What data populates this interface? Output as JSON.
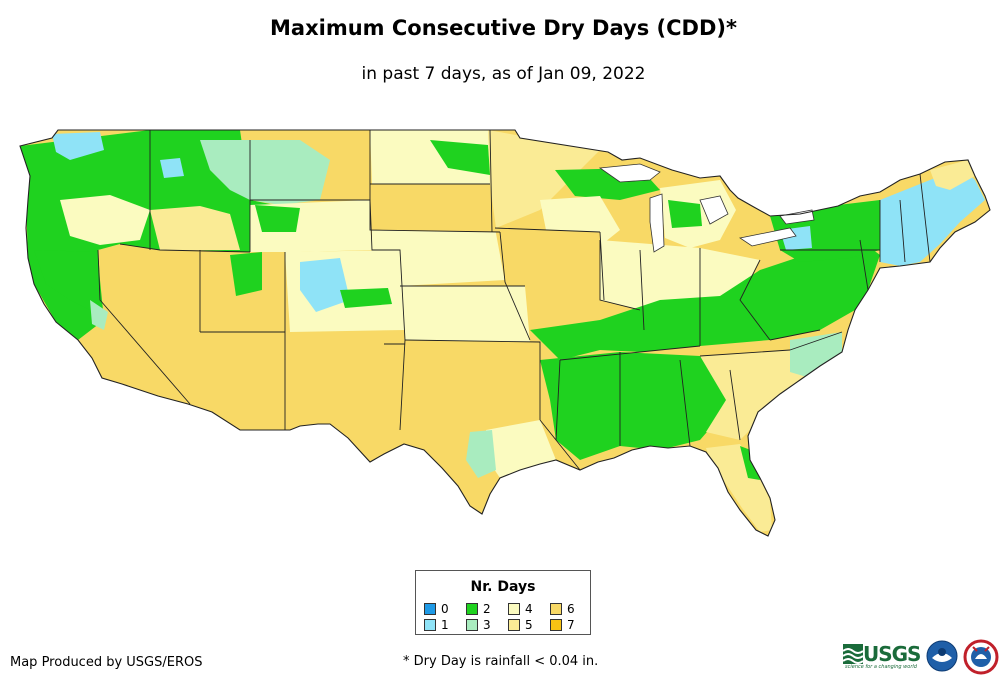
{
  "header": {
    "title": "Maximum Consecutive Dry Days (CDD)*",
    "subtitle": "in past 7 days, as of Jan 09, 2022"
  },
  "legend": {
    "title": "Nr. Days",
    "items": [
      {
        "label": "0",
        "color": "#1f9ae6"
      },
      {
        "label": "1",
        "color": "#8fe3f7"
      },
      {
        "label": "2",
        "color": "#1fd21f"
      },
      {
        "label": "3",
        "color": "#a9ecbf"
      },
      {
        "label": "4",
        "color": "#fbfbc0"
      },
      {
        "label": "5",
        "color": "#faeb95"
      },
      {
        "label": "6",
        "color": "#f8d966"
      },
      {
        "label": "7",
        "color": "#f7c314"
      }
    ]
  },
  "footer": {
    "credit": "Map Produced by USGS/EROS",
    "note": "* Dry Day is rainfall < 0.04 in."
  },
  "logos": {
    "usgs": "USGS",
    "usgs_tagline": "science for a changing world"
  },
  "map": {
    "region": "Contiguous United States",
    "dominant_category": "6",
    "icon_names": [
      "usgs-logo",
      "noaa-logo",
      "nws-logo"
    ]
  }
}
